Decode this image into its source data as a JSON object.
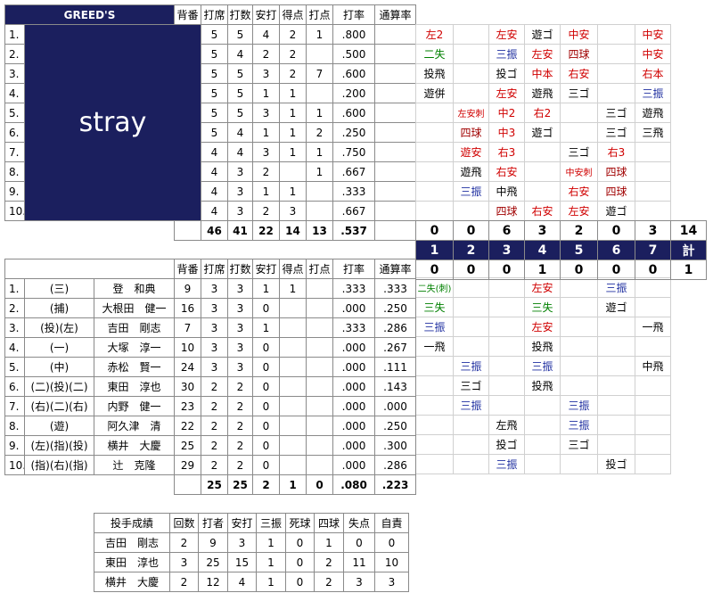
{
  "top": {
    "header": [
      "GREED'S",
      "背番",
      "打席",
      "打数",
      "安打",
      "得点",
      "打点",
      "打率",
      "通算率"
    ],
    "team_name": "stray",
    "rows": [
      [
        "1.",
        5,
        5,
        4,
        2,
        1,
        ".800"
      ],
      [
        "2.",
        5,
        4,
        2,
        2,
        null,
        ".500"
      ],
      [
        "3.",
        5,
        5,
        3,
        2,
        7,
        ".600"
      ],
      [
        "4.",
        5,
        5,
        1,
        1,
        null,
        ".200"
      ],
      [
        "5.",
        5,
        5,
        3,
        1,
        1,
        ".600"
      ],
      [
        "6.",
        5,
        4,
        1,
        1,
        2,
        ".250"
      ],
      [
        "7.",
        4,
        4,
        3,
        1,
        1,
        ".750"
      ],
      [
        "8.",
        4,
        3,
        2,
        null,
        1,
        ".667"
      ],
      [
        "9.",
        4,
        3,
        1,
        1,
        null,
        ".333"
      ],
      [
        "10.",
        4,
        3,
        2,
        3,
        null,
        ".667"
      ]
    ],
    "totals": [
      46,
      41,
      22,
      14,
      13,
      ".537"
    ]
  },
  "top_innings": [
    [
      [
        "左2",
        "#d00000"
      ],
      null,
      [
        "左安",
        "#d00000"
      ],
      [
        "遊ゴ",
        "#000000"
      ],
      [
        "中安",
        "#d00000"
      ],
      null,
      [
        "中安",
        "#d00000"
      ]
    ],
    [
      [
        "二失",
        "#008000"
      ],
      null,
      [
        "三振",
        "#1f2fa0"
      ],
      [
        "左安",
        "#d00000"
      ],
      [
        "四球",
        "#a00000"
      ],
      null,
      [
        "中安",
        "#d00000"
      ]
    ],
    [
      [
        "投飛",
        "#000000"
      ],
      null,
      [
        "投ゴ",
        "#000000"
      ],
      [
        "中本",
        "#d00000"
      ],
      [
        "右安",
        "#d00000"
      ],
      null,
      [
        "右本",
        "#d00000"
      ]
    ],
    [
      [
        "遊併",
        "#000000"
      ],
      null,
      [
        "左安",
        "#d00000"
      ],
      [
        "遊飛",
        "#000000"
      ],
      [
        "三ゴ",
        "#000000"
      ],
      null,
      [
        "三振",
        "#1f2fa0"
      ]
    ],
    [
      null,
      [
        "左安刺",
        "#d00000"
      ],
      [
        "中2",
        "#d00000"
      ],
      [
        "右2",
        "#d00000"
      ],
      null,
      [
        "三ゴ",
        "#000000"
      ],
      [
        "遊飛",
        "#000000"
      ]
    ],
    [
      null,
      [
        "四球",
        "#a00000"
      ],
      [
        "中3",
        "#d00000"
      ],
      [
        "遊ゴ",
        "#000000"
      ],
      null,
      [
        "三ゴ",
        "#000000"
      ],
      [
        "三飛",
        "#000000"
      ]
    ],
    [
      null,
      [
        "遊安",
        "#d00000"
      ],
      [
        "右3",
        "#d00000"
      ],
      null,
      [
        "三ゴ",
        "#000000"
      ],
      [
        "右3",
        "#d00000"
      ],
      null
    ],
    [
      null,
      [
        "遊飛",
        "#000000"
      ],
      [
        "右安",
        "#d00000"
      ],
      null,
      [
        "中安刺",
        "#d00000"
      ],
      [
        "四球",
        "#a00000"
      ],
      null
    ],
    [
      null,
      [
        "三振",
        "#1f2fa0"
      ],
      [
        "中飛",
        "#000000"
      ],
      null,
      [
        "右安",
        "#d00000"
      ],
      [
        "四球",
        "#a00000"
      ],
      null
    ],
    [
      null,
      null,
      [
        "四球",
        "#a00000"
      ],
      [
        "右安",
        "#d00000"
      ],
      [
        "左安",
        "#d00000"
      ],
      [
        "遊ゴ",
        "#000000"
      ],
      null
    ]
  ],
  "scoreboard": {
    "top": [
      0,
      0,
      6,
      3,
      2,
      0,
      3,
      14
    ],
    "innings": [
      1,
      2,
      3,
      4,
      5,
      6,
      7,
      "計"
    ],
    "bottom": [
      0,
      0,
      0,
      1,
      0,
      0,
      0,
      1
    ]
  },
  "bottom": {
    "header": [
      "背番",
      "打席",
      "打数",
      "安打",
      "得点",
      "打点",
      "打率",
      "通算率"
    ],
    "rows": [
      [
        "1.",
        "(三)",
        "登　和典",
        9,
        3,
        3,
        1,
        1,
        null,
        ".333",
        ".333"
      ],
      [
        "2.",
        "(捕)",
        "大根田　健一",
        16,
        3,
        3,
        0,
        null,
        null,
        ".000",
        ".250"
      ],
      [
        "3.",
        "(投)(左)",
        "吉田　剛志",
        7,
        3,
        3,
        1,
        null,
        null,
        ".333",
        ".286"
      ],
      [
        "4.",
        "(一)",
        "大塚　淳一",
        10,
        3,
        3,
        0,
        null,
        null,
        ".000",
        ".267"
      ],
      [
        "5.",
        "(中)",
        "赤松　賢一",
        24,
        3,
        3,
        0,
        null,
        null,
        ".000",
        ".111"
      ],
      [
        "6.",
        "(二)(投)(二)",
        "東田　淳也",
        30,
        2,
        2,
        0,
        null,
        null,
        ".000",
        ".143"
      ],
      [
        "7.",
        "(右)(二)(右)",
        "内野　健一",
        23,
        2,
        2,
        0,
        null,
        null,
        ".000",
        ".000"
      ],
      [
        "8.",
        "(遊)",
        "阿久津　清",
        22,
        2,
        2,
        0,
        null,
        null,
        ".000",
        ".250"
      ],
      [
        "9.",
        "(左)(指)(投)",
        "横井　大慶",
        25,
        2,
        2,
        0,
        null,
        null,
        ".000",
        ".300"
      ],
      [
        "10.",
        "(指)(右)(指)",
        "辻　克隆",
        29,
        2,
        2,
        0,
        null,
        null,
        ".000",
        ".286"
      ]
    ],
    "totals": [
      25,
      25,
      2,
      1,
      0,
      ".080",
      ".223"
    ]
  },
  "bottom_innings": [
    [
      [
        "二失(刺)",
        "#008000"
      ],
      null,
      null,
      [
        "左安",
        "#d00000"
      ],
      null,
      [
        "三振",
        "#1f2fa0"
      ],
      null
    ],
    [
      [
        "三失",
        "#008000"
      ],
      null,
      null,
      [
        "三失",
        "#008000"
      ],
      null,
      [
        "遊ゴ",
        "#000000"
      ],
      null
    ],
    [
      [
        "三振",
        "#1f2fa0"
      ],
      null,
      null,
      [
        "左安",
        "#d00000"
      ],
      null,
      null,
      [
        "一飛",
        "#000000"
      ]
    ],
    [
      [
        "一飛",
        "#000000"
      ],
      null,
      null,
      [
        "投飛",
        "#000000"
      ],
      null,
      null,
      null
    ],
    [
      null,
      [
        "三振",
        "#1f2fa0"
      ],
      null,
      [
        "三振",
        "#1f2fa0"
      ],
      null,
      null,
      [
        "中飛",
        "#000000"
      ]
    ],
    [
      null,
      [
        "三ゴ",
        "#000000"
      ],
      null,
      [
        "投飛",
        "#000000"
      ],
      null,
      null,
      null
    ],
    [
      null,
      [
        "三振",
        "#1f2fa0"
      ],
      null,
      null,
      [
        "三振",
        "#1f2fa0"
      ],
      null,
      null
    ],
    [
      null,
      null,
      [
        "左飛",
        "#000000"
      ],
      null,
      [
        "三振",
        "#1f2fa0"
      ],
      null,
      null
    ],
    [
      null,
      null,
      [
        "投ゴ",
        "#000000"
      ],
      null,
      [
        "三ゴ",
        "#000000"
      ],
      null,
      null
    ],
    [
      null,
      null,
      [
        "三振",
        "#1f2fa0"
      ],
      null,
      null,
      [
        "投ゴ",
        "#000000"
      ],
      null
    ]
  ],
  "pitching": {
    "header": [
      "投手成績",
      "回数",
      "打者",
      "安打",
      "三振",
      "死球",
      "四球",
      "失点",
      "自責"
    ],
    "rows": [
      [
        "吉田　剛志",
        2,
        9,
        3,
        1,
        0,
        1,
        0,
        0
      ],
      [
        "東田　淳也",
        3,
        25,
        15,
        1,
        0,
        2,
        11,
        10
      ],
      [
        "横井　大慶",
        2,
        12,
        4,
        1,
        0,
        2,
        3,
        3
      ]
    ]
  }
}
